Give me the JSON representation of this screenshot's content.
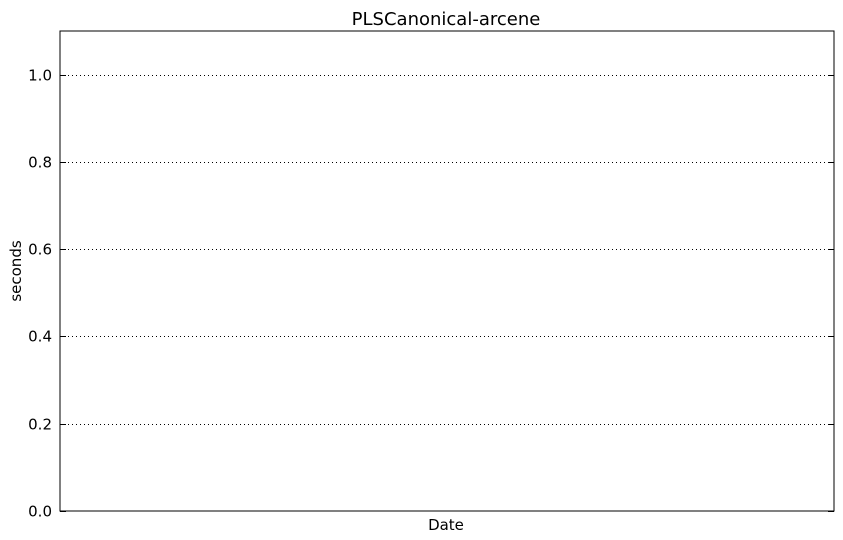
{
  "chart_data": {
    "type": "line",
    "title": "PLSCanonical-arcene",
    "xlabel": "Date",
    "ylabel": "seconds",
    "ylim": [
      0,
      1.1
    ],
    "yticks": [
      0.0,
      0.2,
      0.4,
      0.6,
      0.8,
      1.0
    ],
    "ytick_labels": [
      "0.0",
      "0.2",
      "0.4",
      "0.6",
      "0.8",
      "1.0"
    ],
    "grid": "horizontal-dotted",
    "series": []
  }
}
